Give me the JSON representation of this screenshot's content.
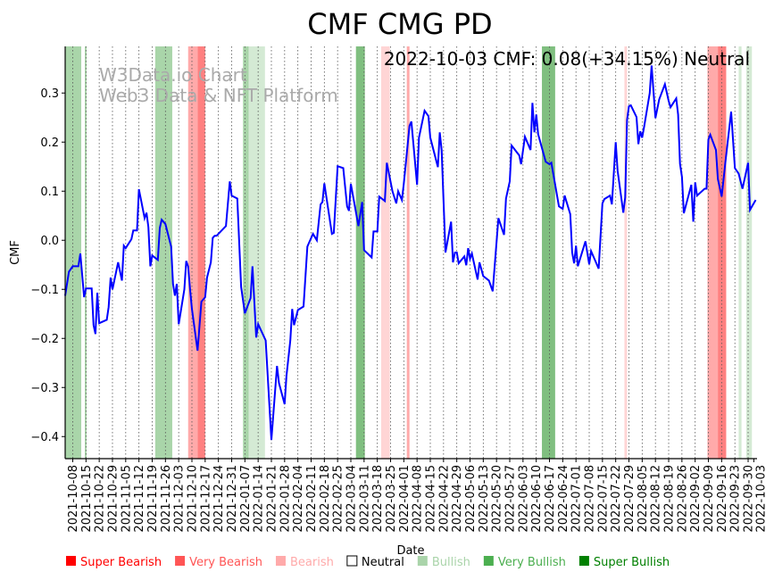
{
  "chart_data": {
    "type": "line",
    "title": "CMF CMG PD",
    "annotation": "2022-10-03 CMF: 0.08(+34.15%) Neutral",
    "watermark": [
      "W3Data.io Chart",
      "Web3 Data & NFT Platform"
    ],
    "xlabel": "Date",
    "ylabel": "CMF",
    "x_start_date": "2021-10-04",
    "x_unit": "days since x_start_date",
    "xlim_days": [
      0,
      365
    ],
    "ylim": [
      -0.445,
      0.395
    ],
    "yticks": [
      0.3,
      0.2,
      0.1,
      0.0,
      -0.1,
      -0.2,
      -0.3,
      -0.4
    ],
    "ytick_labels": [
      "0.3",
      "0.2",
      "0.1",
      "0.0",
      "−0.1",
      "−0.2",
      "−0.3",
      "−0.4"
    ],
    "xtick_labels": [
      "2021-10-08",
      "2021-10-15",
      "2021-10-22",
      "2021-10-29",
      "2021-11-05",
      "2021-11-12",
      "2021-11-19",
      "2021-11-26",
      "2021-12-03",
      "2021-12-10",
      "2021-12-17",
      "2021-12-24",
      "2021-12-31",
      "2022-01-07",
      "2022-01-14",
      "2022-01-21",
      "2022-01-28",
      "2022-02-04",
      "2022-02-11",
      "2022-02-18",
      "2022-02-25",
      "2022-03-04",
      "2022-03-11",
      "2022-03-18",
      "2022-03-25",
      "2022-04-01",
      "2022-04-08",
      "2022-04-15",
      "2022-04-22",
      "2022-04-29",
      "2022-05-06",
      "2022-05-13",
      "2022-05-20",
      "2022-05-27",
      "2022-06-03",
      "2022-06-10",
      "2022-06-17",
      "2022-06-24",
      "2022-07-01",
      "2022-07-08",
      "2022-07-15",
      "2022-07-22",
      "2022-07-29",
      "2022-08-05",
      "2022-08-12",
      "2022-08-19",
      "2022-08-26",
      "2022-09-02",
      "2022-09-09",
      "2022-09-16",
      "2022-09-23",
      "2022-09-30",
      "2022-10-03"
    ],
    "grid": "vertical dotted at weekly ticks",
    "series": [
      {
        "name": "CMF",
        "color": "#0000ff",
        "points": [
          [
            0,
            -0.113
          ],
          [
            2,
            -0.064
          ],
          [
            4,
            -0.053
          ],
          [
            7,
            -0.053
          ],
          [
            8,
            -0.027
          ],
          [
            10,
            -0.116
          ],
          [
            11,
            -0.098
          ],
          [
            14,
            -0.098
          ],
          [
            15,
            -0.173
          ],
          [
            16,
            -0.191
          ],
          [
            17,
            -0.107
          ],
          [
            18,
            -0.169
          ],
          [
            22,
            -0.162
          ],
          [
            23,
            -0.136
          ],
          [
            24,
            -0.076
          ],
          [
            25,
            -0.1
          ],
          [
            28,
            -0.045
          ],
          [
            30,
            -0.082
          ],
          [
            31,
            -0.011
          ],
          [
            32,
            -0.016
          ],
          [
            35,
            0.002
          ],
          [
            36,
            0.02
          ],
          [
            38,
            0.02
          ],
          [
            39,
            0.104
          ],
          [
            42,
            0.045
          ],
          [
            43,
            0.056
          ],
          [
            44,
            0.027
          ],
          [
            45,
            -0.053
          ],
          [
            46,
            -0.031
          ],
          [
            49,
            -0.04
          ],
          [
            50,
            0.025
          ],
          [
            51,
            0.042
          ],
          [
            53,
            0.033
          ],
          [
            56,
            -0.013
          ],
          [
            57,
            -0.089
          ],
          [
            58,
            -0.113
          ],
          [
            59,
            -0.089
          ],
          [
            60,
            -0.171
          ],
          [
            63,
            -0.1
          ],
          [
            64,
            -0.042
          ],
          [
            65,
            -0.053
          ],
          [
            66,
            -0.1
          ],
          [
            67,
            -0.14
          ],
          [
            70,
            -0.225
          ],
          [
            72,
            -0.125
          ],
          [
            74,
            -0.116
          ],
          [
            75,
            -0.076
          ],
          [
            77,
            -0.045
          ],
          [
            78,
            0.005
          ],
          [
            79,
            0.009
          ],
          [
            80,
            0.009
          ],
          [
            85,
            0.029
          ],
          [
            87,
            0.12
          ],
          [
            88,
            0.091
          ],
          [
            91,
            0.085
          ],
          [
            93,
            -0.095
          ],
          [
            95,
            -0.149
          ],
          [
            98,
            -0.118
          ],
          [
            99,
            -0.053
          ],
          [
            101,
            -0.198
          ],
          [
            102,
            -0.171
          ],
          [
            106,
            -0.204
          ],
          [
            109,
            -0.407
          ],
          [
            112,
            -0.256
          ],
          [
            113,
            -0.291
          ],
          [
            116,
            -0.334
          ],
          [
            117,
            -0.276
          ],
          [
            119,
            -0.204
          ],
          [
            120,
            -0.14
          ],
          [
            121,
            -0.173
          ],
          [
            123,
            -0.142
          ],
          [
            126,
            -0.135
          ],
          [
            128,
            -0.013
          ],
          [
            129,
            -0.004
          ],
          [
            131,
            0.013
          ],
          [
            133,
            0.0
          ],
          [
            135,
            0.073
          ],
          [
            136,
            0.078
          ],
          [
            137,
            0.116
          ],
          [
            141,
            0.013
          ],
          [
            142,
            0.015
          ],
          [
            144,
            0.151
          ],
          [
            147,
            0.147
          ],
          [
            149,
            0.069
          ],
          [
            150,
            0.06
          ],
          [
            151,
            0.115
          ],
          [
            155,
            0.029
          ],
          [
            157,
            0.078
          ],
          [
            158,
            -0.02
          ],
          [
            162,
            -0.035
          ],
          [
            163,
            0.018
          ],
          [
            165,
            0.018
          ],
          [
            166,
            0.089
          ],
          [
            169,
            0.08
          ],
          [
            170,
            0.158
          ],
          [
            173,
            0.1
          ],
          [
            175,
            0.075
          ],
          [
            176,
            0.1
          ],
          [
            178,
            0.082
          ],
          [
            179,
            0.115
          ],
          [
            182,
            0.233
          ],
          [
            183,
            0.242
          ],
          [
            186,
            0.113
          ],
          [
            187,
            0.209
          ],
          [
            190,
            0.264
          ],
          [
            192,
            0.253
          ],
          [
            193,
            0.209
          ],
          [
            197,
            0.149
          ],
          [
            198,
            0.22
          ],
          [
            199,
            0.184
          ],
          [
            201,
            -0.025
          ],
          [
            204,
            0.038
          ],
          [
            205,
            -0.045
          ],
          [
            206,
            -0.025
          ],
          [
            207,
            -0.025
          ],
          [
            208,
            -0.047
          ],
          [
            211,
            -0.033
          ],
          [
            212,
            -0.051
          ],
          [
            213,
            -0.016
          ],
          [
            214,
            -0.038
          ],
          [
            215,
            -0.027
          ],
          [
            218,
            -0.08
          ],
          [
            219,
            -0.045
          ],
          [
            221,
            -0.073
          ],
          [
            224,
            -0.082
          ],
          [
            226,
            -0.104
          ],
          [
            229,
            0.045
          ],
          [
            232,
            0.011
          ],
          [
            233,
            0.085
          ],
          [
            235,
            0.12
          ],
          [
            236,
            0.193
          ],
          [
            240,
            0.173
          ],
          [
            241,
            0.155
          ],
          [
            243,
            0.211
          ],
          [
            246,
            0.184
          ],
          [
            247,
            0.28
          ],
          [
            248,
            0.22
          ],
          [
            249,
            0.256
          ],
          [
            250,
            0.216
          ],
          [
            254,
            0.16
          ],
          [
            256,
            0.155
          ],
          [
            257,
            0.158
          ],
          [
            261,
            0.069
          ],
          [
            263,
            0.064
          ],
          [
            264,
            0.091
          ],
          [
            267,
            0.053
          ],
          [
            268,
            -0.025
          ],
          [
            269,
            -0.047
          ],
          [
            270,
            -0.011
          ],
          [
            271,
            -0.053
          ],
          [
            272,
            -0.04
          ],
          [
            275,
            -0.002
          ],
          [
            277,
            -0.049
          ],
          [
            278,
            -0.022
          ],
          [
            282,
            -0.058
          ],
          [
            284,
            0.075
          ],
          [
            285,
            0.084
          ],
          [
            288,
            0.091
          ],
          [
            289,
            0.073
          ],
          [
            291,
            0.2
          ],
          [
            292,
            0.142
          ],
          [
            295,
            0.056
          ],
          [
            296,
            0.087
          ],
          [
            297,
            0.245
          ],
          [
            298,
            0.273
          ],
          [
            299,
            0.275
          ],
          [
            302,
            0.251
          ],
          [
            303,
            0.196
          ],
          [
            304,
            0.222
          ],
          [
            305,
            0.209
          ],
          [
            306,
            0.231
          ],
          [
            309,
            0.3
          ],
          [
            310,
            0.356
          ],
          [
            312,
            0.249
          ],
          [
            314,
            0.287
          ],
          [
            317,
            0.318
          ],
          [
            319,
            0.284
          ],
          [
            320,
            0.271
          ],
          [
            323,
            0.289
          ],
          [
            324,
            0.256
          ],
          [
            325,
            0.156
          ],
          [
            326,
            0.129
          ],
          [
            327,
            0.055
          ],
          [
            331,
            0.113
          ],
          [
            332,
            0.038
          ],
          [
            333,
            0.118
          ],
          [
            334,
            0.091
          ],
          [
            338,
            0.105
          ],
          [
            339,
            0.105
          ],
          [
            340,
            0.205
          ],
          [
            341,
            0.215
          ],
          [
            344,
            0.184
          ],
          [
            345,
            0.125
          ],
          [
            347,
            0.089
          ],
          [
            349,
            0.16
          ],
          [
            352,
            0.262
          ],
          [
            354,
            0.147
          ],
          [
            356,
            0.136
          ],
          [
            358,
            0.105
          ],
          [
            361,
            0.158
          ],
          [
            362,
            0.062
          ],
          [
            365,
            0.082
          ]
        ]
      }
    ],
    "bands": [
      {
        "from": 0,
        "to": 8.5,
        "kind": "very_bullish"
      },
      {
        "from": 10.4,
        "to": 11.3,
        "kind": "very_bullish"
      },
      {
        "from": 47.6,
        "to": 56.6,
        "kind": "very_bullish"
      },
      {
        "from": 65,
        "to": 70,
        "kind": "very_bearish"
      },
      {
        "from": 70,
        "to": 74,
        "kind": "super_bearish"
      },
      {
        "from": 94,
        "to": 97,
        "kind": "very_bullish"
      },
      {
        "from": 97,
        "to": 105.6,
        "kind": "bullish"
      },
      {
        "from": 153.7,
        "to": 158.4,
        "kind": "super_bullish"
      },
      {
        "from": 167,
        "to": 171.6,
        "kind": "bearish"
      },
      {
        "from": 180.6,
        "to": 182,
        "kind": "very_bearish"
      },
      {
        "from": 252,
        "to": 259,
        "kind": "super_bullish"
      },
      {
        "from": 295.6,
        "to": 297,
        "kind": "bearish"
      },
      {
        "from": 339.5,
        "to": 345,
        "kind": "very_bearish"
      },
      {
        "from": 345,
        "to": 349.4,
        "kind": "super_bearish"
      },
      {
        "from": 356,
        "to": 357.5,
        "kind": "bullish"
      },
      {
        "from": 360,
        "to": 363,
        "kind": "bullish"
      }
    ],
    "band_colors": {
      "super_bearish": "#ff8080",
      "very_bearish": "#ffaaaa",
      "bearish": "#ffd5d5",
      "bullish": "#d4ead4",
      "very_bullish": "#a9d5a9",
      "super_bullish": "#80bf80"
    },
    "legend": {
      "placement": "bottom",
      "items": [
        {
          "label": "Super Bearish",
          "color": "#ff0000",
          "text_color": "#ff0000"
        },
        {
          "label": "Very Bearish",
          "color": "#ff5555",
          "text_color": "#ff5555"
        },
        {
          "label": "Bearish",
          "color": "#ffaaaa",
          "text_color": "#ffaaaa"
        },
        {
          "label": "Neutral",
          "color": "#ffffff",
          "text_color": "#000000"
        },
        {
          "label": "Bullish",
          "color": "#aad4aa",
          "text_color": "#aad4aa"
        },
        {
          "label": "Very Bullish",
          "color": "#4caf50",
          "text_color": "#4caf50"
        },
        {
          "label": "Super Bullish",
          "color": "#008000",
          "text_color": "#008000"
        }
      ]
    }
  }
}
